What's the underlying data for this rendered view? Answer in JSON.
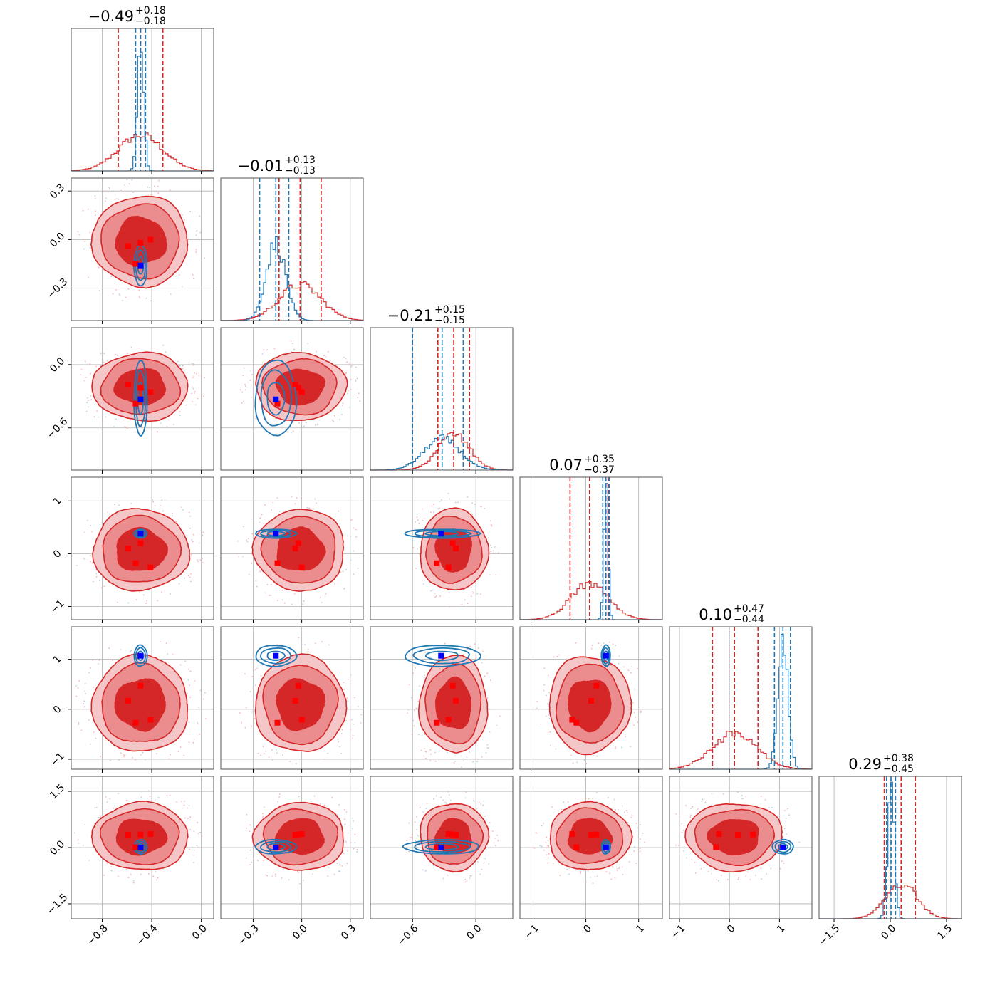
{
  "chart_data": {
    "type": "corner",
    "colors": {
      "posterior_a": "#d62728",
      "posterior_b": "#1f77b4",
      "truth_a": "#ff0000",
      "truth_b": "#0000ff"
    },
    "grid": true,
    "parameters": [
      {
        "index": 0,
        "range": [
          -1.05,
          0.1
        ],
        "ticks": [
          -0.8,
          -0.4,
          0.0
        ],
        "tick_labels": [
          "−0.8",
          "−0.4",
          "0.0"
        ],
        "title": {
          "median": "−0.49",
          "plus": "+0.18",
          "minus": "−0.18"
        },
        "a": {
          "mean": -0.49,
          "sd": 0.18,
          "q": [
            -0.67,
            -0.49,
            -0.31
          ]
        },
        "b": {
          "mean": -0.49,
          "sd": 0.025,
          "q": [
            -0.53,
            -0.49,
            -0.45
          ]
        }
      },
      {
        "index": 1,
        "range": [
          -0.5,
          0.38
        ],
        "ticks": [
          -0.3,
          0.0,
          0.3
        ],
        "tick_labels": [
          "−0.3",
          "0.0",
          "0.3"
        ],
        "title": {
          "median": "−0.01",
          "plus": "+0.13",
          "minus": "−0.13"
        },
        "a": {
          "mean": -0.01,
          "sd": 0.13,
          "q": [
            -0.14,
            -0.01,
            0.12
          ]
        },
        "b": {
          "mean": -0.16,
          "sd": 0.06,
          "q": [
            -0.26,
            -0.16,
            -0.08
          ]
        }
      },
      {
        "index": 2,
        "range": [
          -1.0,
          0.35
        ],
        "ticks": [
          -0.6,
          0.0
        ],
        "tick_labels": [
          "−0.6",
          "0.0"
        ],
        "title": {
          "median": "−0.21",
          "plus": "+0.15",
          "minus": "−0.15"
        },
        "a": {
          "mean": -0.21,
          "sd": 0.15,
          "q": [
            -0.36,
            -0.21,
            -0.06
          ]
        },
        "b": {
          "mean": -0.32,
          "sd": 0.17,
          "q": [
            -0.6,
            -0.32,
            -0.12
          ]
        }
      },
      {
        "index": 3,
        "range": [
          -1.25,
          1.45
        ],
        "ticks": [
          -1,
          0,
          1
        ],
        "tick_labels": [
          "−1",
          "0",
          "1"
        ],
        "title": {
          "median": "0.07",
          "plus": "+0.35",
          "minus": "−0.37"
        },
        "a": {
          "mean": 0.07,
          "sd": 0.36,
          "q": [
            -0.3,
            0.07,
            0.42
          ]
        },
        "b": {
          "mean": 0.38,
          "sd": 0.04,
          "q": [
            0.32,
            0.38,
            0.44
          ]
        }
      },
      {
        "index": 4,
        "range": [
          -1.2,
          1.65
        ],
        "ticks": [
          -1,
          0,
          1
        ],
        "tick_labels": [
          "−1",
          "0",
          "1"
        ],
        "title": {
          "median": "0.10",
          "plus": "+0.47",
          "minus": "−0.44"
        },
        "a": {
          "mean": 0.1,
          "sd": 0.45,
          "q": [
            -0.34,
            0.1,
            0.57
          ]
        },
        "b": {
          "mean": 1.07,
          "sd": 0.1,
          "q": [
            0.9,
            1.07,
            1.22
          ]
        }
      },
      {
        "index": 5,
        "range": [
          -1.9,
          1.9
        ],
        "ticks": [
          -1.5,
          0.0,
          1.5
        ],
        "tick_labels": [
          "−1.5",
          "0.0",
          "1.5"
        ],
        "title": {
          "median": "0.29",
          "plus": "+0.38",
          "minus": "−0.45"
        },
        "a": {
          "mean": 0.29,
          "sd": 0.42,
          "q": [
            -0.16,
            0.29,
            0.67
          ]
        },
        "b": {
          "mean": 0.02,
          "sd": 0.09,
          "q": [
            -0.1,
            0.02,
            0.14
          ]
        }
      }
    ],
    "truth_markers": {
      "blue": [
        -0.49,
        -0.16,
        -0.33,
        0.38,
        1.07,
        0.0
      ],
      "red": [
        [
          -0.49,
          -0.02,
          -0.22,
          0.2,
          0.47,
          0.35
        ],
        [
          -0.59,
          -0.04,
          -0.19,
          0.1,
          0.17,
          0.34
        ],
        [
          -0.41,
          0.0,
          -0.26,
          -0.26,
          -0.21,
          0.36
        ],
        [
          -0.53,
          -0.15,
          -0.37,
          -0.18,
          -0.27,
          0.01
        ]
      ]
    }
  }
}
